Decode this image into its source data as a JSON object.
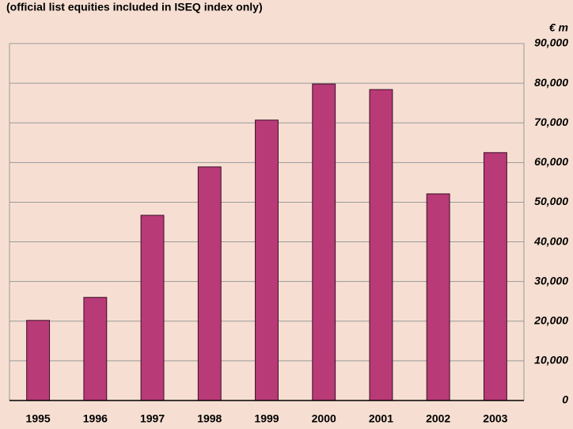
{
  "chart_data": {
    "type": "bar",
    "title": "(official list equities included in ISEQ index only)",
    "y_label": "€ m",
    "categories": [
      "1995",
      "1996",
      "1997",
      "1998",
      "1999",
      "2000",
      "2001",
      "2002",
      "2003"
    ],
    "values": [
      20200,
      26000,
      46700,
      58900,
      70700,
      79800,
      78400,
      52100,
      62500
    ],
    "color": "#b83a76",
    "ylim": [
      0,
      90000
    ],
    "yticks": [
      0,
      {
        "value": 10000,
        "label": "10,000"
      },
      {
        "value": 20000,
        "label": "20,000"
      },
      {
        "value": 30000,
        "label": "30,000"
      },
      {
        "value": 40000,
        "label": "40,000"
      },
      {
        "value": 50000,
        "label": "50,000"
      },
      {
        "value": 60000,
        "label": "60,000"
      },
      {
        "value": 70000,
        "label": "70,000"
      },
      {
        "value": 80000,
        "label": "80,000"
      },
      {
        "value": 90000,
        "label": "90,000"
      }
    ],
    "grid": true
  }
}
